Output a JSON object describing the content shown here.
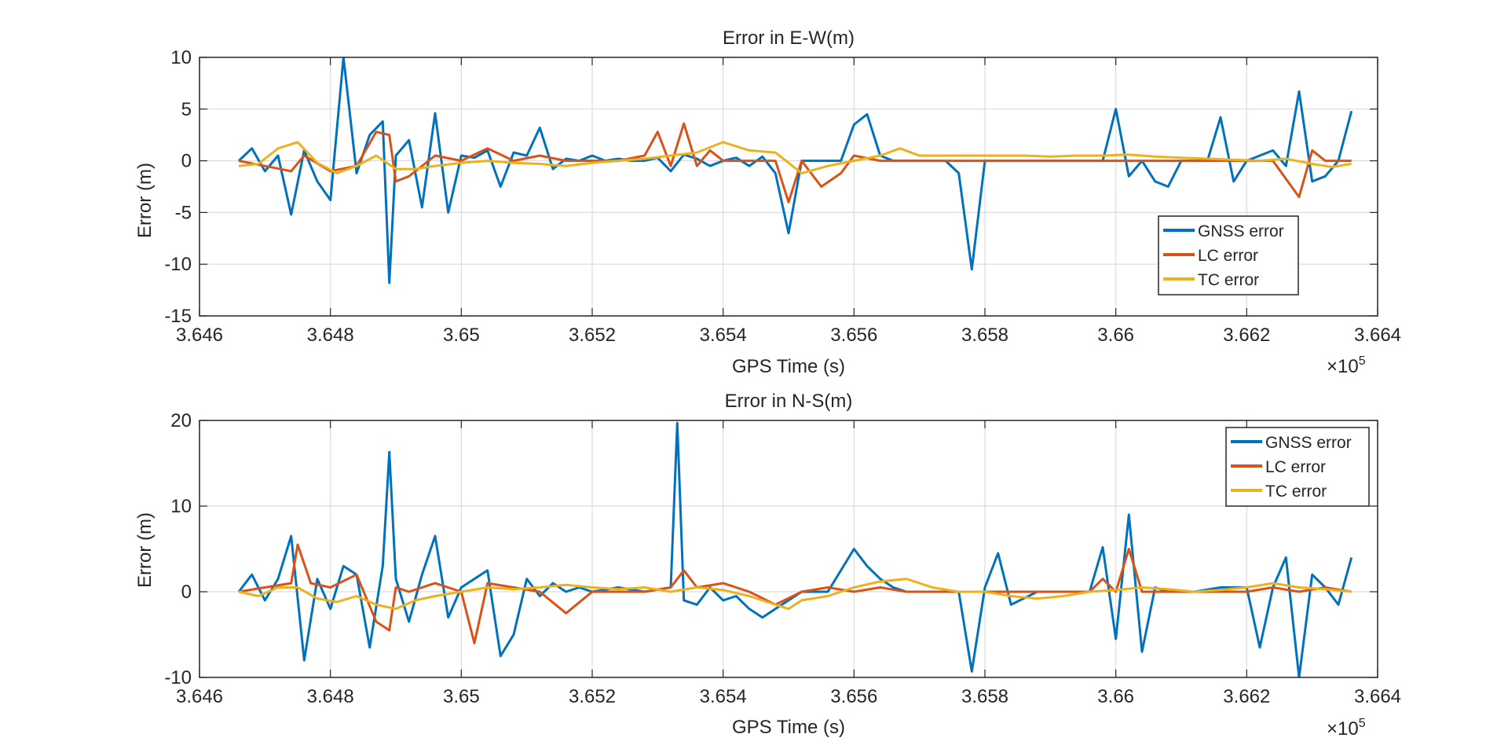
{
  "colors": {
    "gnss": "#0072BD",
    "lc": "#D95319",
    "tc": "#EDB120",
    "grid": "#dcdcdc",
    "axis": "#262626",
    "background": "#ffffff"
  },
  "chart_data": [
    {
      "type": "line",
      "title": "Error in E-W(m)",
      "xlabel": "GPS Time (s)",
      "ylabel": "Error (m)",
      "xlim": [
        3.646,
        3.664
      ],
      "ylim": [
        -15,
        10
      ],
      "x_multiplier": "×10",
      "x_multiplier_exponent": "5",
      "xticks": [
        3.646,
        3.648,
        3.65,
        3.652,
        3.654,
        3.656,
        3.658,
        3.66,
        3.662,
        3.664
      ],
      "xtick_labels": [
        "3.646",
        "3.648",
        "3.65",
        "3.652",
        "3.654",
        "3.656",
        "3.658",
        "3.66",
        "3.662",
        "3.664"
      ],
      "yticks": [
        -15,
        -10,
        -5,
        0,
        5,
        10
      ],
      "ytick_labels": [
        "-15",
        "-10",
        "-5",
        "0",
        "5",
        "10"
      ],
      "grid": true,
      "legend_position": "lower-right",
      "series": [
        {
          "name": "GNSS error",
          "color": "#0072BD",
          "x": [
            3.6466,
            3.6468,
            3.647,
            3.6472,
            3.6474,
            3.6476,
            3.6478,
            3.648,
            3.6482,
            3.6484,
            3.6486,
            3.6488,
            3.6489,
            3.649,
            3.6492,
            3.6494,
            3.6496,
            3.6498,
            3.65,
            3.6502,
            3.6504,
            3.6506,
            3.6508,
            3.651,
            3.6512,
            3.6514,
            3.6516,
            3.6518,
            3.652,
            3.6522,
            3.6524,
            3.6526,
            3.6528,
            3.653,
            3.6532,
            3.6534,
            3.6536,
            3.6538,
            3.654,
            3.6542,
            3.6544,
            3.6546,
            3.6548,
            3.655,
            3.6552,
            3.6554,
            3.6556,
            3.6558,
            3.656,
            3.6562,
            3.6564,
            3.6566,
            3.6568,
            3.657,
            3.6572,
            3.6574,
            3.6576,
            3.6578,
            3.658,
            3.6582,
            3.6584,
            3.6586,
            3.6588,
            3.659,
            3.6592,
            3.6594,
            3.6596,
            3.6598,
            3.66,
            3.6602,
            3.6604,
            3.6606,
            3.6608,
            3.661,
            3.6612,
            3.6614,
            3.6616,
            3.6618,
            3.662,
            3.6622,
            3.6624,
            3.6626,
            3.6628,
            3.663,
            3.6632,
            3.6634,
            3.6636
          ],
          "y": [
            0,
            1.2,
            -1.0,
            0.5,
            -5.2,
            1.0,
            -2.0,
            -3.8,
            10.0,
            -1.2,
            2.5,
            3.8,
            -11.8,
            0.5,
            2.0,
            -4.5,
            4.6,
            -5.0,
            0.5,
            0.3,
            1.0,
            -2.5,
            0.8,
            0.5,
            3.2,
            -0.8,
            0.2,
            0.0,
            0.5,
            0.0,
            0.2,
            0.0,
            0.0,
            0.3,
            -1.0,
            0.6,
            0.2,
            -0.5,
            0.0,
            0.3,
            -0.5,
            0.4,
            -1.2,
            -7.0,
            0.0,
            0.0,
            0.0,
            0.0,
            3.5,
            4.5,
            0.5,
            0.0,
            0.0,
            0.0,
            0.0,
            0.0,
            -1.2,
            -10.5,
            0.0,
            0.0,
            0.0,
            0.0,
            0.0,
            0.0,
            0.0,
            0.0,
            0.0,
            0.0,
            5.0,
            -1.5,
            0.0,
            -2.0,
            -2.5,
            0.0,
            0.0,
            0.0,
            4.2,
            -2.0,
            0.0,
            0.5,
            1.0,
            -0.5,
            6.7,
            -2.0,
            -1.5,
            0.0,
            4.8
          ]
        },
        {
          "name": "LC error",
          "color": "#D95319",
          "x": [
            3.6466,
            3.647,
            3.6474,
            3.6476,
            3.648,
            3.6484,
            3.6487,
            3.6489,
            3.649,
            3.6492,
            3.6496,
            3.65,
            3.6504,
            3.6508,
            3.6512,
            3.6516,
            3.652,
            3.6524,
            3.6528,
            3.653,
            3.6532,
            3.6534,
            3.6536,
            3.6538,
            3.654,
            3.6544,
            3.6548,
            3.655,
            3.6552,
            3.6555,
            3.6558,
            3.656,
            3.6564,
            3.6568,
            3.6572,
            3.6576,
            3.658,
            3.6584,
            3.6588,
            3.6592,
            3.6596,
            3.66,
            3.6604,
            3.6608,
            3.6612,
            3.6616,
            3.662,
            3.6624,
            3.6628,
            3.663,
            3.6632,
            3.6636
          ],
          "y": [
            0,
            -0.5,
            -1.0,
            0.5,
            -1.0,
            -0.5,
            2.8,
            2.5,
            -2.0,
            -1.5,
            0.5,
            0.0,
            1.2,
            0.0,
            0.5,
            0.0,
            0.0,
            0.0,
            0.5,
            2.8,
            -0.5,
            3.6,
            -0.5,
            1.0,
            0.0,
            0.0,
            0.0,
            -4.0,
            0.0,
            -2.5,
            -1.2,
            0.5,
            0.0,
            0.0,
            0.0,
            0.0,
            0.0,
            0.0,
            0.0,
            0.0,
            0.0,
            0.0,
            0.0,
            0.0,
            0.0,
            0.0,
            0.0,
            0.0,
            -3.5,
            1.0,
            0.0,
            0.0
          ]
        },
        {
          "name": "TC error",
          "color": "#EDB120",
          "x": [
            3.6466,
            3.6469,
            3.6472,
            3.6475,
            3.6478,
            3.6481,
            3.6484,
            3.6487,
            3.649,
            3.6493,
            3.6496,
            3.65,
            3.6504,
            3.6508,
            3.6512,
            3.6516,
            3.652,
            3.6524,
            3.6528,
            3.6532,
            3.6536,
            3.654,
            3.6544,
            3.6548,
            3.6552,
            3.6556,
            3.656,
            3.6564,
            3.6567,
            3.657,
            3.6574,
            3.6578,
            3.6582,
            3.6586,
            3.659,
            3.6594,
            3.6598,
            3.6602,
            3.6606,
            3.661,
            3.6614,
            3.6618,
            3.6622,
            3.6626,
            3.663,
            3.6633,
            3.6636
          ],
          "y": [
            -0.5,
            -0.3,
            1.2,
            1.8,
            -0.2,
            -1.2,
            -0.5,
            0.5,
            -0.8,
            -0.8,
            -0.5,
            -0.2,
            0.0,
            -0.2,
            -0.3,
            -0.5,
            -0.2,
            0.0,
            0.2,
            0.5,
            0.8,
            1.8,
            1.0,
            0.8,
            -1.2,
            -0.5,
            0.0,
            0.5,
            1.2,
            0.5,
            0.5,
            0.5,
            0.5,
            0.5,
            0.4,
            0.5,
            0.5,
            0.6,
            0.4,
            0.3,
            0.2,
            0.1,
            0.0,
            0.2,
            -0.3,
            -0.6,
            -0.3
          ]
        }
      ]
    },
    {
      "type": "line",
      "title": "Error in N-S(m)",
      "xlabel": "GPS Time (s)",
      "ylabel": "Error (m)",
      "xlim": [
        3.646,
        3.664
      ],
      "ylim": [
        -10,
        20
      ],
      "x_multiplier": "×10",
      "x_multiplier_exponent": "5",
      "xticks": [
        3.646,
        3.648,
        3.65,
        3.652,
        3.654,
        3.656,
        3.658,
        3.66,
        3.662,
        3.664
      ],
      "xtick_labels": [
        "3.646",
        "3.648",
        "3.65",
        "3.652",
        "3.654",
        "3.656",
        "3.658",
        "3.66",
        "3.662",
        "3.664"
      ],
      "yticks": [
        -10,
        0,
        10,
        20
      ],
      "ytick_labels": [
        "-10",
        "0",
        "10",
        "20"
      ],
      "grid": true,
      "legend_position": "upper-right",
      "series": [
        {
          "name": "GNSS error",
          "color": "#0072BD",
          "x": [
            3.6466,
            3.6468,
            3.647,
            3.6472,
            3.6474,
            3.6476,
            3.6478,
            3.648,
            3.6482,
            3.6484,
            3.6486,
            3.6488,
            3.6489,
            3.649,
            3.6492,
            3.6494,
            3.6496,
            3.6498,
            3.65,
            3.6502,
            3.6504,
            3.6506,
            3.6508,
            3.651,
            3.6512,
            3.6514,
            3.6516,
            3.6518,
            3.652,
            3.6524,
            3.6528,
            3.6532,
            3.6533,
            3.6534,
            3.6536,
            3.6538,
            3.654,
            3.6542,
            3.6544,
            3.6546,
            3.6548,
            3.655,
            3.6552,
            3.6556,
            3.656,
            3.6562,
            3.6564,
            3.6566,
            3.6568,
            3.6572,
            3.6576,
            3.6578,
            3.658,
            3.6582,
            3.6584,
            3.6588,
            3.6592,
            3.6596,
            3.6598,
            3.66,
            3.6602,
            3.6604,
            3.6606,
            3.6608,
            3.6612,
            3.6616,
            3.662,
            3.6622,
            3.6624,
            3.6626,
            3.6628,
            3.663,
            3.6632,
            3.6634,
            3.6636
          ],
          "y": [
            0,
            2.0,
            -1.0,
            1.5,
            6.5,
            -8.0,
            1.5,
            -2.0,
            3.0,
            2.0,
            -6.5,
            3.0,
            16.3,
            1.5,
            -3.5,
            2.0,
            6.5,
            -3.0,
            0.5,
            1.5,
            2.5,
            -7.5,
            -5.0,
            1.5,
            -0.5,
            1.0,
            0.0,
            0.5,
            0.0,
            0.5,
            0.0,
            0.5,
            19.7,
            -1.0,
            -1.5,
            0.5,
            -1.0,
            -0.5,
            -2.0,
            -3.0,
            -2.0,
            -1.0,
            0.0,
            0.0,
            5.0,
            3.0,
            1.5,
            0.5,
            0.0,
            0.0,
            0.0,
            -9.3,
            0.5,
            4.5,
            -1.5,
            0.0,
            0.0,
            0.0,
            5.2,
            -5.5,
            9.0,
            -7.0,
            0.5,
            0.0,
            0.0,
            0.5,
            0.5,
            -6.5,
            0.5,
            4.0,
            -10.0,
            2.0,
            0.5,
            -1.5,
            4.0
          ]
        },
        {
          "name": "LC error",
          "color": "#D95319",
          "x": [
            3.6466,
            3.647,
            3.6474,
            3.6475,
            3.6477,
            3.648,
            3.6484,
            3.6487,
            3.6489,
            3.649,
            3.6492,
            3.6496,
            3.65,
            3.6502,
            3.6504,
            3.6508,
            3.6512,
            3.6516,
            3.652,
            3.6524,
            3.6528,
            3.6532,
            3.6534,
            3.6536,
            3.654,
            3.6544,
            3.6548,
            3.6552,
            3.6556,
            3.656,
            3.6564,
            3.6568,
            3.6572,
            3.6576,
            3.658,
            3.6584,
            3.6588,
            3.6592,
            3.6596,
            3.6598,
            3.66,
            3.6602,
            3.6604,
            3.6608,
            3.6612,
            3.6616,
            3.662,
            3.6624,
            3.6628,
            3.6632,
            3.6636
          ],
          "y": [
            0,
            0.5,
            1.0,
            5.5,
            1.0,
            0.5,
            2.0,
            -3.5,
            -4.5,
            0.5,
            0.0,
            1.0,
            0.0,
            -6.0,
            1.0,
            0.5,
            0.0,
            -2.5,
            0.0,
            0.0,
            0.0,
            0.5,
            2.5,
            0.5,
            1.0,
            0.0,
            -1.5,
            0.0,
            0.5,
            0.0,
            0.5,
            0.0,
            0.0,
            0.0,
            0.0,
            0.0,
            0.0,
            0.0,
            0.0,
            1.5,
            0.0,
            5.0,
            0.0,
            0.0,
            0.0,
            0.0,
            0.0,
            0.5,
            0.0,
            0.5,
            0.0
          ]
        },
        {
          "name": "TC error",
          "color": "#EDB120",
          "x": [
            3.6466,
            3.6469,
            3.6472,
            3.6475,
            3.6478,
            3.6481,
            3.6484,
            3.6487,
            3.649,
            3.6493,
            3.6496,
            3.65,
            3.6504,
            3.6508,
            3.6512,
            3.6516,
            3.652,
            3.6524,
            3.6528,
            3.6532,
            3.6536,
            3.654,
            3.6544,
            3.6548,
            3.655,
            3.6552,
            3.6556,
            3.656,
            3.6564,
            3.6568,
            3.6572,
            3.6576,
            3.658,
            3.6584,
            3.6588,
            3.6592,
            3.6596,
            3.66,
            3.6604,
            3.6608,
            3.6612,
            3.6616,
            3.662,
            3.6624,
            3.6628,
            3.6632,
            3.6636
          ],
          "y": [
            0,
            -0.5,
            0.5,
            0.5,
            -0.8,
            -1.2,
            -0.5,
            -1.5,
            -2.0,
            -1.0,
            -0.5,
            0.0,
            0.5,
            0.3,
            0.5,
            0.8,
            0.5,
            0.3,
            0.5,
            0.0,
            0.5,
            0.2,
            -0.5,
            -1.5,
            -2.0,
            -1.0,
            -0.5,
            0.5,
            1.2,
            1.5,
            0.5,
            0.0,
            0.0,
            -0.5,
            -0.8,
            -0.5,
            0.0,
            0.2,
            0.5,
            0.3,
            0.0,
            0.2,
            0.5,
            1.0,
            0.5,
            0.3,
            0.0
          ]
        }
      ]
    }
  ]
}
